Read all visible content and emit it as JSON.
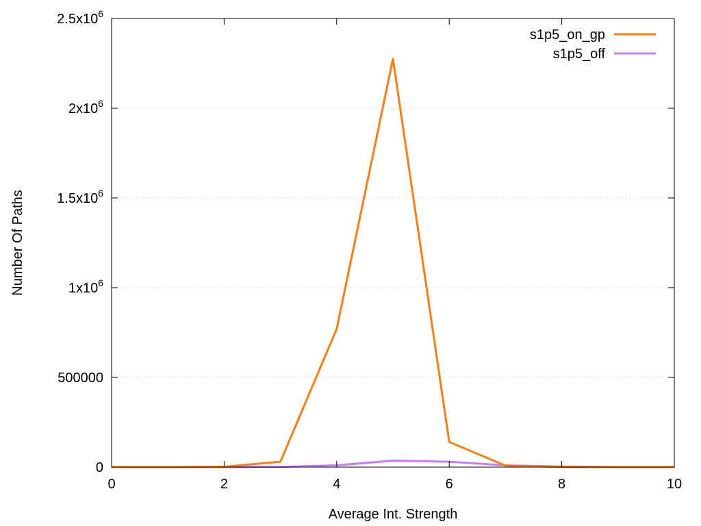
{
  "chart_data": {
    "type": "line",
    "title": "",
    "xlabel": "Average Int. Strength",
    "ylabel": "Number Of Paths",
    "xlim": [
      0,
      10
    ],
    "ylim": [
      0,
      2500000
    ],
    "grid": "horizontal dotted",
    "legend_position": "top-right",
    "x_ticks": [
      0,
      2,
      4,
      6,
      8,
      10
    ],
    "x_tick_labels": [
      "0",
      "2",
      "4",
      "6",
      "8",
      "10"
    ],
    "y_ticks": [
      0,
      500000,
      1000000,
      1500000,
      2000000,
      2500000
    ],
    "y_tick_labels": [
      {
        "base": "0",
        "exp": ""
      },
      {
        "base": "500000",
        "exp": ""
      },
      {
        "base": "1x10",
        "exp": "6"
      },
      {
        "base": "1.5x10",
        "exp": "6"
      },
      {
        "base": "2x10",
        "exp": "6"
      },
      {
        "base": "2.5x10",
        "exp": "6"
      }
    ],
    "x": [
      0,
      1,
      2,
      3,
      4,
      5,
      6,
      7,
      8,
      9,
      10
    ],
    "series": [
      {
        "name": "s1p5_on_gp",
        "color": "#ff7f0e",
        "values": [
          0,
          0,
          2000,
          30000,
          770000,
          2275000,
          140000,
          8000,
          1000,
          0,
          0
        ]
      },
      {
        "name": "s1p5_off",
        "color": "#c77cff",
        "values": [
          0,
          0,
          0,
          1000,
          10000,
          36000,
          30000,
          10000,
          3000,
          0,
          0
        ]
      }
    ]
  }
}
